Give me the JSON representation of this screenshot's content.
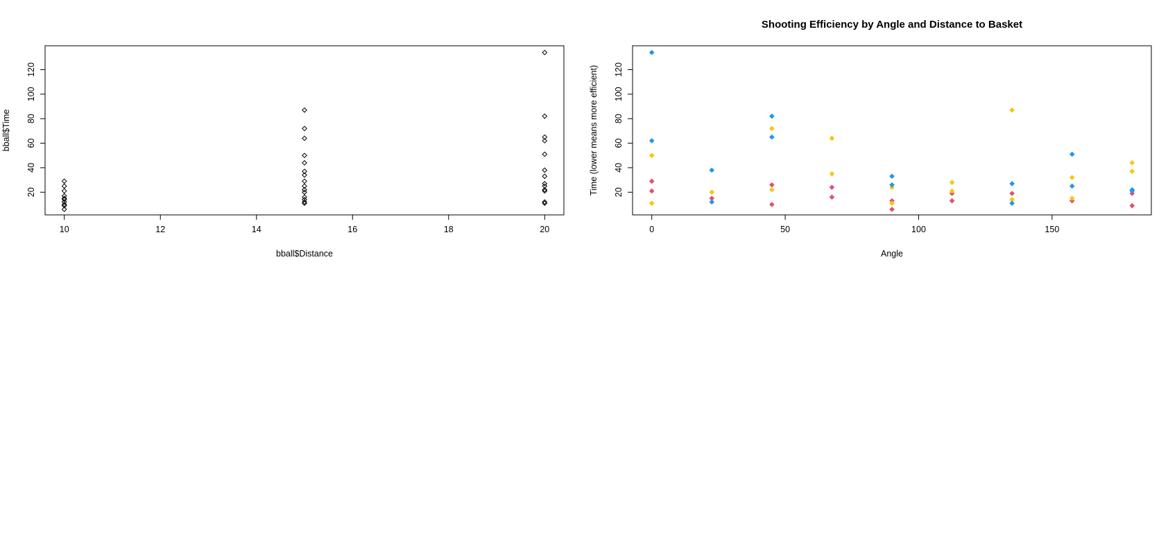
{
  "chart_data": [
    {
      "type": "scatter",
      "title": "",
      "xlabel": "bball$Distance",
      "ylabel": "bball$Time",
      "xlim": [
        9.6,
        20.4
      ],
      "ylim": [
        1.5,
        139.5
      ],
      "xticks": [
        10,
        12,
        14,
        16,
        18,
        20
      ],
      "yticks": [
        20,
        40,
        60,
        80,
        100,
        120
      ],
      "marker": "open-diamond",
      "color": "#000000",
      "points": [
        {
          "x": 10,
          "y": 29
        },
        {
          "x": 10,
          "y": 25
        },
        {
          "x": 10,
          "y": 21
        },
        {
          "x": 10,
          "y": 17
        },
        {
          "x": 10,
          "y": 15
        },
        {
          "x": 10,
          "y": 14
        },
        {
          "x": 10,
          "y": 12
        },
        {
          "x": 10,
          "y": 10
        },
        {
          "x": 10,
          "y": 9
        },
        {
          "x": 10,
          "y": 6
        },
        {
          "x": 15,
          "y": 87
        },
        {
          "x": 15,
          "y": 72
        },
        {
          "x": 15,
          "y": 64
        },
        {
          "x": 15,
          "y": 50
        },
        {
          "x": 15,
          "y": 44
        },
        {
          "x": 15,
          "y": 37
        },
        {
          "x": 15,
          "y": 34
        },
        {
          "x": 15,
          "y": 29
        },
        {
          "x": 15,
          "y": 25
        },
        {
          "x": 15,
          "y": 22
        },
        {
          "x": 15,
          "y": 20
        },
        {
          "x": 15,
          "y": 16
        },
        {
          "x": 15,
          "y": 14
        },
        {
          "x": 15,
          "y": 12
        },
        {
          "x": 15,
          "y": 11
        },
        {
          "x": 20,
          "y": 134
        },
        {
          "x": 20,
          "y": 82
        },
        {
          "x": 20,
          "y": 65
        },
        {
          "x": 20,
          "y": 62
        },
        {
          "x": 20,
          "y": 51
        },
        {
          "x": 20,
          "y": 38
        },
        {
          "x": 20,
          "y": 33
        },
        {
          "x": 20,
          "y": 27
        },
        {
          "x": 20,
          "y": 25
        },
        {
          "x": 20,
          "y": 22
        },
        {
          "x": 20,
          "y": 21
        },
        {
          "x": 20,
          "y": 12
        },
        {
          "x": 20,
          "y": 11
        }
      ]
    },
    {
      "type": "scatter",
      "title": "Shooting Efficiency by Angle and Distance to Basket",
      "xlabel": "Angle",
      "ylabel": "Time (lower means more efficient)",
      "xlim": [
        -7.2,
        187.2
      ],
      "ylim": [
        1.5,
        139.5
      ],
      "xticks": [
        0,
        50,
        100,
        150
      ],
      "yticks": [
        20,
        40,
        60,
        80,
        100,
        120
      ],
      "marker": "filled-diamond",
      "series": [
        {
          "color": "#df536b",
          "points": [
            {
              "x": 0,
              "y": 29
            },
            {
              "x": 0,
              "y": 21
            },
            {
              "x": 22.5,
              "y": 15
            },
            {
              "x": 45,
              "y": 26
            },
            {
              "x": 45,
              "y": 10
            },
            {
              "x": 67.5,
              "y": 24
            },
            {
              "x": 67.5,
              "y": 16
            },
            {
              "x": 90,
              "y": 13
            },
            {
              "x": 90,
              "y": 6
            },
            {
              "x": 112.5,
              "y": 19
            },
            {
              "x": 112.5,
              "y": 13
            },
            {
              "x": 135,
              "y": 19
            },
            {
              "x": 157.5,
              "y": 13
            },
            {
              "x": 180,
              "y": 19
            },
            {
              "x": 180,
              "y": 9
            }
          ]
        },
        {
          "color": "#f5c710",
          "points": [
            {
              "x": 0,
              "y": 50
            },
            {
              "x": 0,
              "y": 11
            },
            {
              "x": 22.5,
              "y": 20
            },
            {
              "x": 45,
              "y": 72
            },
            {
              "x": 45,
              "y": 22
            },
            {
              "x": 67.5,
              "y": 64
            },
            {
              "x": 67.5,
              "y": 35
            },
            {
              "x": 90,
              "y": 24
            },
            {
              "x": 90,
              "y": 11
            },
            {
              "x": 112.5,
              "y": 28
            },
            {
              "x": 112.5,
              "y": 21
            },
            {
              "x": 135,
              "y": 87
            },
            {
              "x": 135,
              "y": 14
            },
            {
              "x": 157.5,
              "y": 32
            },
            {
              "x": 157.5,
              "y": 15
            },
            {
              "x": 180,
              "y": 44
            },
            {
              "x": 180,
              "y": 37
            }
          ]
        },
        {
          "color": "#2297e6",
          "points": [
            {
              "x": 0,
              "y": 134
            },
            {
              "x": 0,
              "y": 62
            },
            {
              "x": 22.5,
              "y": 38
            },
            {
              "x": 22.5,
              "y": 12
            },
            {
              "x": 45,
              "y": 82
            },
            {
              "x": 45,
              "y": 65
            },
            {
              "x": 90,
              "y": 33
            },
            {
              "x": 90,
              "y": 26
            },
            {
              "x": 135,
              "y": 27
            },
            {
              "x": 135,
              "y": 11
            },
            {
              "x": 157.5,
              "y": 51
            },
            {
              "x": 157.5,
              "y": 25
            },
            {
              "x": 180,
              "y": 22
            },
            {
              "x": 180,
              "y": 21
            }
          ]
        }
      ]
    }
  ]
}
